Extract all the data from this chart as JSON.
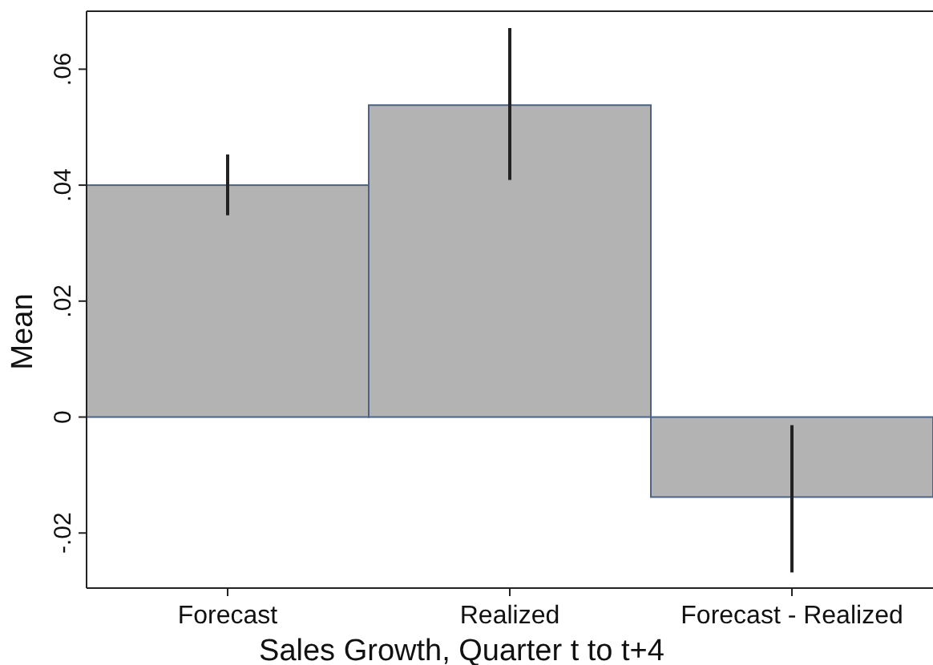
{
  "chart_data": {
    "type": "bar",
    "xlabel": "Sales Growth, Quarter t to t+4",
    "ylabel": "Mean",
    "categories": [
      "Forecast",
      "Realized",
      "Forecast - Realized"
    ],
    "values": [
      0.04,
      0.0538,
      -0.0138
    ],
    "errors": [
      [
        0.0348,
        0.0453
      ],
      [
        0.0409,
        0.0671
      ],
      [
        -0.0268,
        -0.0014
      ]
    ],
    "color": "#b3b3b3",
    "ylim": [
      -0.0295,
      0.07
    ],
    "yticks": [
      {
        "value": -0.02,
        "label": "-.02"
      },
      0,
      {
        "value": 0.02,
        "label": ".02"
      },
      {
        "value": 0.04,
        "label": ".04"
      },
      {
        "value": 0.06,
        "label": ".06"
      }
    ],
    "grid": false
  }
}
